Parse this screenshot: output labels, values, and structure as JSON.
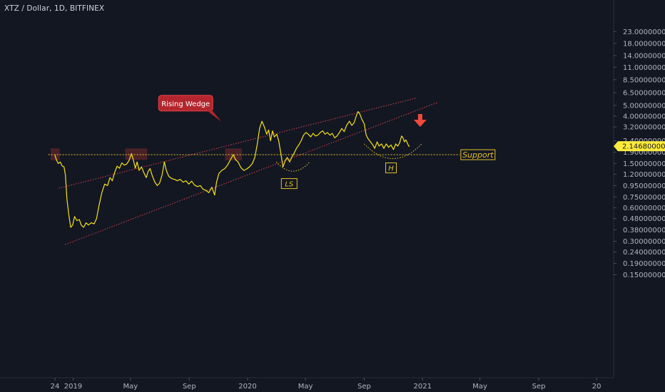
{
  "header": {
    "title": "XTZ / Dollar, 1D, BITFINEX"
  },
  "colors": {
    "background": "#131722",
    "price_line": "#f5e21b",
    "wedge_lines": "#e0404a",
    "support_line": "#e6c229",
    "highlight_box": "#7a2a2e",
    "arrow": "#ef4a3c",
    "price_tag": "#ffeb3b"
  },
  "chart_data": {
    "type": "line",
    "title": "XTZ / Dollar, 1D, BITFINEX",
    "xlabel": "",
    "ylabel": "",
    "y_scale": "log",
    "ylim": [
      0.13,
      23.0
    ],
    "y_ticks": [
      "23.00000000",
      "18.00000000",
      "14.00000000",
      "11.00000000",
      "8.50000000",
      "6.50000000",
      "5.00000000",
      "4.00000000",
      "3.20000000",
      "2.40000000",
      "1.90000000",
      "1.50000000",
      "1.20000000",
      "0.95000000",
      "0.75000000",
      "0.60000000",
      "0.48000000",
      "0.38000000",
      "0.30000000",
      "0.24000000",
      "0.19000000",
      "0.15000000"
    ],
    "x_ticks": [
      "24",
      "2019",
      "May",
      "Sep",
      "2020",
      "May",
      "Sep",
      "2021",
      "May",
      "Sep",
      "20"
    ],
    "last_price": "2.14680000",
    "series": [
      {
        "values": [
          [
            "2018-11-24",
            1.79
          ],
          [
            "2018-11-27",
            1.62
          ],
          [
            "2018-12-01",
            1.5
          ],
          [
            "2018-12-05",
            1.55
          ],
          [
            "2018-12-09",
            1.43
          ],
          [
            "2018-12-13",
            1.4
          ],
          [
            "2018-12-16",
            1.18
          ],
          [
            "2018-12-19",
            0.72
          ],
          [
            "2018-12-23",
            0.52
          ],
          [
            "2018-12-27",
            0.4
          ],
          [
            "2018-12-31",
            0.42
          ],
          [
            "2019-01-04",
            0.5
          ],
          [
            "2019-01-09",
            0.46
          ],
          [
            "2019-01-14",
            0.47
          ],
          [
            "2019-01-18",
            0.42
          ],
          [
            "2019-01-23",
            0.4
          ],
          [
            "2019-01-28",
            0.44
          ],
          [
            "2019-02-02",
            0.42
          ],
          [
            "2019-02-08",
            0.44
          ],
          [
            "2019-02-14",
            0.43
          ],
          [
            "2019-02-19",
            0.48
          ],
          [
            "2019-02-24",
            0.62
          ],
          [
            "2019-03-02",
            0.82
          ],
          [
            "2019-03-08",
            0.98
          ],
          [
            "2019-03-14",
            0.95
          ],
          [
            "2019-03-19",
            1.12
          ],
          [
            "2019-03-24",
            1.05
          ],
          [
            "2019-03-29",
            1.25
          ],
          [
            "2019-04-03",
            1.42
          ],
          [
            "2019-04-08",
            1.36
          ],
          [
            "2019-04-13",
            1.52
          ],
          [
            "2019-04-18",
            1.45
          ],
          [
            "2019-04-23",
            1.48
          ],
          [
            "2019-04-28",
            1.6
          ],
          [
            "2019-05-03",
            1.84
          ],
          [
            "2019-05-07",
            1.62
          ],
          [
            "2019-05-11",
            1.36
          ],
          [
            "2019-05-15",
            1.55
          ],
          [
            "2019-05-19",
            1.3
          ],
          [
            "2019-05-24",
            1.4
          ],
          [
            "2019-05-29",
            1.24
          ],
          [
            "2019-06-03",
            1.12
          ],
          [
            "2019-06-07",
            1.28
          ],
          [
            "2019-06-11",
            1.35
          ],
          [
            "2019-06-16",
            1.15
          ],
          [
            "2019-06-21",
            1.02
          ],
          [
            "2019-06-26",
            0.95
          ],
          [
            "2019-07-01",
            1.0
          ],
          [
            "2019-07-06",
            1.18
          ],
          [
            "2019-07-11",
            1.55
          ],
          [
            "2019-07-15",
            1.3
          ],
          [
            "2019-07-20",
            1.15
          ],
          [
            "2019-07-26",
            1.1
          ],
          [
            "2019-08-01",
            1.08
          ],
          [
            "2019-08-07",
            1.05
          ],
          [
            "2019-08-13",
            1.08
          ],
          [
            "2019-08-19",
            1.02
          ],
          [
            "2019-08-25",
            1.05
          ],
          [
            "2019-08-31",
            0.98
          ],
          [
            "2019-09-06",
            1.04
          ],
          [
            "2019-09-12",
            0.96
          ],
          [
            "2019-09-18",
            0.93
          ],
          [
            "2019-09-24",
            0.95
          ],
          [
            "2019-09-30",
            0.88
          ],
          [
            "2019-10-06",
            0.86
          ],
          [
            "2019-10-12",
            0.82
          ],
          [
            "2019-10-18",
            0.92
          ],
          [
            "2019-10-24",
            0.78
          ],
          [
            "2019-10-28",
            1.02
          ],
          [
            "2019-11-02",
            1.22
          ],
          [
            "2019-11-08",
            1.3
          ],
          [
            "2019-11-14",
            1.35
          ],
          [
            "2019-11-20",
            1.45
          ],
          [
            "2019-11-26",
            1.62
          ],
          [
            "2019-12-02",
            1.8
          ],
          [
            "2019-12-07",
            1.62
          ],
          [
            "2019-12-12",
            1.55
          ],
          [
            "2019-12-18",
            1.38
          ],
          [
            "2019-12-24",
            1.3
          ],
          [
            "2019-12-30",
            1.34
          ],
          [
            "2020-01-05",
            1.4
          ],
          [
            "2020-01-11",
            1.5
          ],
          [
            "2020-01-16",
            1.7
          ],
          [
            "2020-01-21",
            2.2
          ],
          [
            "2020-01-26",
            3.1
          ],
          [
            "2020-01-31",
            3.6
          ],
          [
            "2020-02-05",
            3.2
          ],
          [
            "2020-02-10",
            2.75
          ],
          [
            "2020-02-14",
            3.0
          ],
          [
            "2020-02-18",
            2.4
          ],
          [
            "2020-02-22",
            2.95
          ],
          [
            "2020-02-26",
            2.6
          ],
          [
            "2020-03-02",
            2.75
          ],
          [
            "2020-03-06",
            2.4
          ],
          [
            "2020-03-11",
            1.8
          ],
          [
            "2020-03-15",
            1.4
          ],
          [
            "2020-03-20",
            1.6
          ],
          [
            "2020-03-24",
            1.7
          ],
          [
            "2020-03-29",
            1.55
          ],
          [
            "2020-04-02",
            1.7
          ],
          [
            "2020-04-07",
            1.85
          ],
          [
            "2020-04-12",
            2.05
          ],
          [
            "2020-04-17",
            2.2
          ],
          [
            "2020-04-22",
            2.4
          ],
          [
            "2020-04-27",
            2.7
          ],
          [
            "2020-05-02",
            2.85
          ],
          [
            "2020-05-07",
            2.75
          ],
          [
            "2020-05-12",
            2.6
          ],
          [
            "2020-05-17",
            2.8
          ],
          [
            "2020-05-22",
            2.65
          ],
          [
            "2020-05-27",
            2.7
          ],
          [
            "2020-06-01",
            2.85
          ],
          [
            "2020-06-06",
            2.95
          ],
          [
            "2020-06-11",
            2.75
          ],
          [
            "2020-06-16",
            2.85
          ],
          [
            "2020-06-21",
            2.7
          ],
          [
            "2020-06-26",
            2.8
          ],
          [
            "2020-07-01",
            2.55
          ],
          [
            "2020-07-06",
            2.65
          ],
          [
            "2020-07-11",
            2.85
          ],
          [
            "2020-07-16",
            3.1
          ],
          [
            "2020-07-21",
            2.9
          ],
          [
            "2020-07-26",
            3.3
          ],
          [
            "2020-08-01",
            3.6
          ],
          [
            "2020-08-06",
            3.3
          ],
          [
            "2020-08-11",
            3.5
          ],
          [
            "2020-08-16",
            4.1
          ],
          [
            "2020-08-19",
            4.4
          ],
          [
            "2020-08-23",
            4.15
          ],
          [
            "2020-08-27",
            3.75
          ],
          [
            "2020-09-01",
            3.4
          ],
          [
            "2020-09-05",
            2.7
          ],
          [
            "2020-09-09",
            2.5
          ],
          [
            "2020-09-14",
            2.35
          ],
          [
            "2020-09-19",
            2.2
          ],
          [
            "2020-09-23",
            2.05
          ],
          [
            "2020-09-28",
            2.35
          ],
          [
            "2020-10-02",
            2.15
          ],
          [
            "2020-10-07",
            2.25
          ],
          [
            "2020-10-12",
            2.05
          ],
          [
            "2020-10-17",
            2.25
          ],
          [
            "2020-10-22",
            2.1
          ],
          [
            "2020-10-27",
            2.2
          ],
          [
            "2020-11-01",
            2.0
          ],
          [
            "2020-11-06",
            2.25
          ],
          [
            "2020-11-10",
            2.15
          ],
          [
            "2020-11-14",
            2.3
          ],
          [
            "2020-11-18",
            2.65
          ],
          [
            "2020-11-21",
            2.55
          ],
          [
            "2020-11-24",
            2.35
          ],
          [
            "2020-11-27",
            2.45
          ],
          [
            "2020-11-30",
            2.3
          ],
          [
            "2020-12-03",
            2.15
          ],
          [
            "2020-12-05",
            2.1468
          ]
        ]
      }
    ],
    "wedge_upper": [
      [
        "2018-12-02",
        0.9
      ],
      [
        "2020-12-18",
        5.8
      ]
    ],
    "wedge_lower": [
      [
        "2018-12-15",
        0.28
      ],
      [
        "2021-02-01",
        5.3
      ]
    ],
    "support_level": 1.8,
    "support_x_range": [
      "2018-11-10",
      "2021-03-20"
    ],
    "highlight_boxes": [
      {
        "x": [
          "2018-11-15",
          "2018-12-04"
        ],
        "y": [
          1.6,
          2.05
        ]
      },
      {
        "x": [
          "2019-04-20",
          "2019-06-05"
        ],
        "y": [
          1.62,
          2.05
        ]
      },
      {
        "x": [
          "2019-11-15",
          "2019-12-20"
        ],
        "y": [
          1.6,
          2.05
        ]
      }
    ],
    "shoulder_curves": [
      {
        "x": [
          "2020-03-01",
          "2020-05-10"
        ],
        "top": 1.55,
        "bottom": 1.28
      },
      {
        "x": [
          "2020-09-01",
          "2020-12-30"
        ],
        "top": 2.25,
        "bottom": 1.66
      }
    ],
    "annotations": [
      {
        "text": "Rising Wedge",
        "x": "2019-12-01",
        "y": 5.0
      },
      {
        "text": "Support",
        "x": "2021-03-22",
        "y": 1.8
      },
      {
        "text": "LS",
        "x": "2020-03-28",
        "y": 0.99
      },
      {
        "text": "H",
        "x": "2020-10-27",
        "y": 1.37
      }
    ],
    "arrow": {
      "x": "2020-12-27",
      "y": 3.6,
      "direction": "down"
    }
  }
}
